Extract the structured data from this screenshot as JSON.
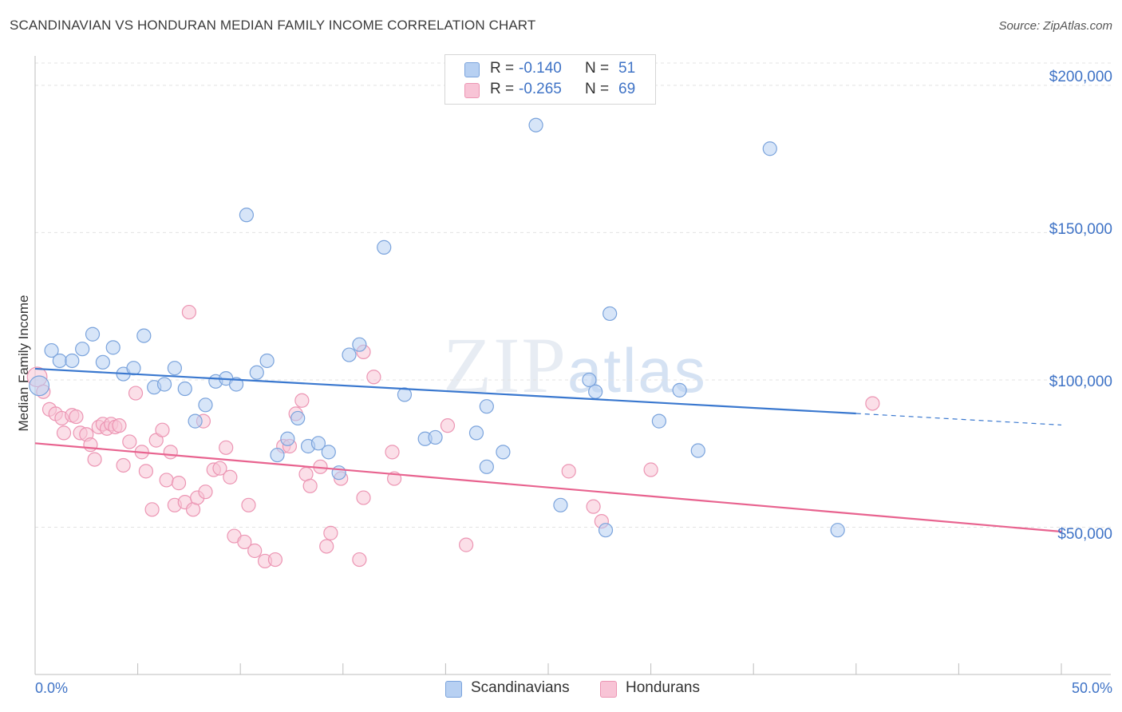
{
  "title": "SCANDINAVIAN VS HONDURAN MEDIAN FAMILY INCOME CORRELATION CHART",
  "source": "Source: ZipAtlas.com",
  "watermark": {
    "zip": "ZIP",
    "atlas": "atlas"
  },
  "stats": {
    "r_label": "R =",
    "n_label": "N =",
    "scandinavians": {
      "r": "-0.140",
      "n": "51"
    },
    "hondurans": {
      "r": "-0.265",
      "n": "69"
    }
  },
  "colors": {
    "scandinavians_fill": "#b7d0f2",
    "scandinavians_stroke": "#7aa3dc",
    "scandinavians_line": "#3a78cf",
    "hondurans_fill": "#f8c4d6",
    "hondurans_stroke": "#ec95b3",
    "hondurans_line": "#e8638f",
    "axis_text": "#3f73c6",
    "grid": "#e3e3e3"
  },
  "chart_data": {
    "type": "scatter",
    "title": "SCANDINAVIAN VS HONDURAN MEDIAN FAMILY INCOME CORRELATION CHART",
    "xlabel": "",
    "ylabel": "Median Family Income",
    "xlim": [
      0,
      50
    ],
    "ylim": [
      0,
      210000
    ],
    "x_tick_labels": [
      "0.0%",
      "50.0%"
    ],
    "y_ticks": [
      50000,
      100000,
      150000,
      200000
    ],
    "y_tick_labels": [
      "$50,000",
      "$100,000",
      "$150,000",
      "$200,000"
    ],
    "grid": true,
    "legend": [
      "Scandinavians",
      "Hondurans"
    ],
    "series": [
      {
        "name": "Scandinavians",
        "trend": {
          "x": [
            0,
            40,
            50
          ],
          "y": [
            103800,
            88600,
            84700
          ],
          "solid_until": 40
        },
        "points": [
          [
            0.2,
            98000
          ],
          [
            0.8,
            110000
          ],
          [
            1.2,
            106500
          ],
          [
            1.8,
            106500
          ],
          [
            2.3,
            110500
          ],
          [
            2.8,
            115500
          ],
          [
            3.3,
            106000
          ],
          [
            3.8,
            111000
          ],
          [
            4.3,
            102000
          ],
          [
            4.8,
            104000
          ],
          [
            5.3,
            115000
          ],
          [
            5.8,
            97500
          ],
          [
            6.3,
            98500
          ],
          [
            6.8,
            104000
          ],
          [
            7.3,
            97000
          ],
          [
            7.8,
            86000
          ],
          [
            8.3,
            91500
          ],
          [
            8.8,
            99500
          ],
          [
            9.3,
            100500
          ],
          [
            9.8,
            98500
          ],
          [
            10.3,
            156000
          ],
          [
            10.8,
            102500
          ],
          [
            11.3,
            106500
          ],
          [
            11.8,
            74500
          ],
          [
            12.3,
            80000
          ],
          [
            12.8,
            87000
          ],
          [
            13.3,
            77500
          ],
          [
            13.8,
            78500
          ],
          [
            14.3,
            75500
          ],
          [
            14.8,
            68500
          ],
          [
            15.3,
            108500
          ],
          [
            15.8,
            112000
          ],
          [
            17.0,
            145000
          ],
          [
            18.0,
            95000
          ],
          [
            19.0,
            80000
          ],
          [
            19.5,
            80500
          ],
          [
            21.5,
            82000
          ],
          [
            22.0,
            70500
          ],
          [
            22.0,
            91000
          ],
          [
            22.8,
            75500
          ],
          [
            24.4,
            186500
          ],
          [
            25.6,
            57500
          ],
          [
            27.0,
            100000
          ],
          [
            27.3,
            96000
          ],
          [
            27.8,
            49000
          ],
          [
            28.0,
            122500
          ],
          [
            30.4,
            86000
          ],
          [
            31.4,
            96500
          ],
          [
            32.3,
            76000
          ],
          [
            35.8,
            178500
          ],
          [
            39.1,
            49000
          ]
        ]
      },
      {
        "name": "Hondurans",
        "trend": {
          "x": [
            0,
            50
          ],
          "y": [
            78500,
            48500
          ]
        },
        "points": [
          [
            0.1,
            101000
          ],
          [
            0.4,
            96000
          ],
          [
            0.7,
            90000
          ],
          [
            1.0,
            88500
          ],
          [
            1.3,
            87000
          ],
          [
            1.4,
            82000
          ],
          [
            1.8,
            88000
          ],
          [
            2.0,
            87500
          ],
          [
            2.2,
            82000
          ],
          [
            2.5,
            81500
          ],
          [
            2.7,
            78000
          ],
          [
            2.9,
            73000
          ],
          [
            3.1,
            84000
          ],
          [
            3.3,
            85000
          ],
          [
            3.5,
            83500
          ],
          [
            3.7,
            85000
          ],
          [
            3.9,
            84000
          ],
          [
            4.1,
            84500
          ],
          [
            4.3,
            71000
          ],
          [
            4.6,
            79000
          ],
          [
            4.9,
            95500
          ],
          [
            5.2,
            75500
          ],
          [
            5.4,
            69000
          ],
          [
            5.7,
            56000
          ],
          [
            5.9,
            79500
          ],
          [
            6.2,
            83000
          ],
          [
            6.4,
            66000
          ],
          [
            6.6,
            75500
          ],
          [
            6.8,
            57500
          ],
          [
            7.0,
            65000
          ],
          [
            7.3,
            58500
          ],
          [
            7.5,
            123000
          ],
          [
            7.7,
            56000
          ],
          [
            7.9,
            60000
          ],
          [
            8.2,
            86000
          ],
          [
            8.3,
            62000
          ],
          [
            8.7,
            69500
          ],
          [
            9.0,
            70000
          ],
          [
            9.3,
            77000
          ],
          [
            9.5,
            67000
          ],
          [
            9.7,
            47000
          ],
          [
            10.2,
            45000
          ],
          [
            10.4,
            57500
          ],
          [
            10.7,
            42000
          ],
          [
            11.2,
            38500
          ],
          [
            11.7,
            39000
          ],
          [
            12.1,
            77500
          ],
          [
            12.4,
            77500
          ],
          [
            12.7,
            88500
          ],
          [
            13.0,
            93000
          ],
          [
            13.2,
            68000
          ],
          [
            13.4,
            64000
          ],
          [
            13.9,
            70500
          ],
          [
            14.2,
            43500
          ],
          [
            14.4,
            48000
          ],
          [
            14.9,
            66500
          ],
          [
            15.8,
            39000
          ],
          [
            16.0,
            109500
          ],
          [
            16.0,
            60000
          ],
          [
            16.5,
            101000
          ],
          [
            17.4,
            75500
          ],
          [
            17.5,
            66500
          ],
          [
            20.1,
            84500
          ],
          [
            21.0,
            44000
          ],
          [
            26.0,
            69000
          ],
          [
            27.2,
            57000
          ],
          [
            27.6,
            52000
          ],
          [
            30.0,
            69500
          ],
          [
            40.8,
            92000
          ]
        ]
      }
    ]
  }
}
